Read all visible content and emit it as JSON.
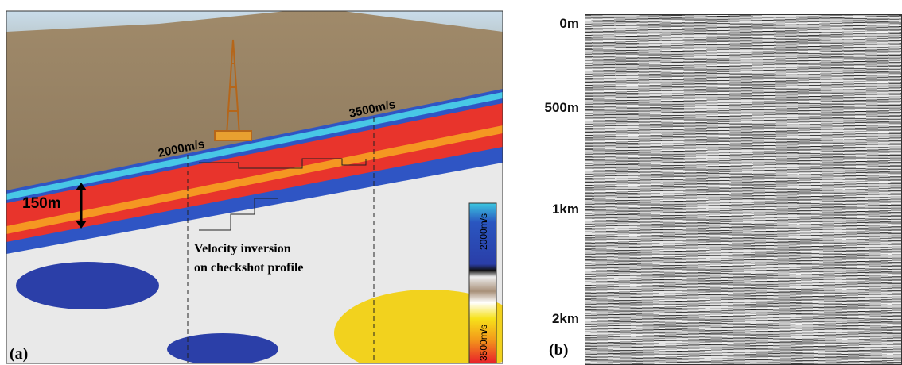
{
  "panels": {
    "a": {
      "label": "(a)",
      "velocity_left": "2000m/s",
      "velocity_right": "3500m/s",
      "thickness": "150m",
      "note_line1": "Velocity inversion",
      "note_line2": "on checkshot profile",
      "colorbar_top": "2000m/s",
      "colorbar_bottom": "3500m/s"
    },
    "b": {
      "label": "(b)",
      "depth_labels": [
        "0m",
        "500m",
        "1km",
        "2km"
      ]
    }
  }
}
